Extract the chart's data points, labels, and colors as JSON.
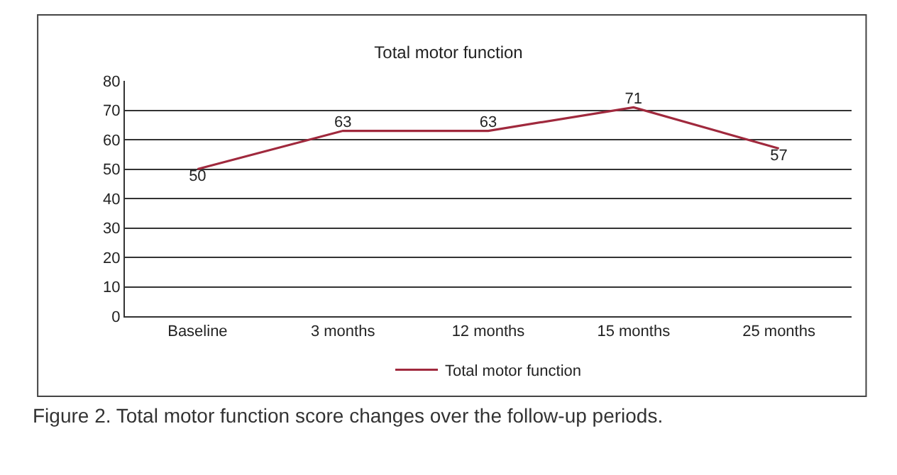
{
  "chart_data": {
    "type": "line",
    "title": "Total motor function",
    "categories": [
      "Baseline",
      "3 months",
      "12 months",
      "15 months",
      "25 months"
    ],
    "series": [
      {
        "name": "Total motor function",
        "color": "#a0293d",
        "values": [
          50,
          63,
          63,
          71,
          57
        ]
      }
    ],
    "ylim": [
      0,
      80
    ],
    "yticks": [
      0,
      10,
      20,
      30,
      40,
      50,
      60,
      70,
      80
    ],
    "grid": "y",
    "legend": "bottom",
    "marker": "none",
    "line_style": "solid",
    "data_labels": true,
    "annotations": [
      "Figure 2. Total motor function score changes over the follow-up periods."
    ]
  }
}
